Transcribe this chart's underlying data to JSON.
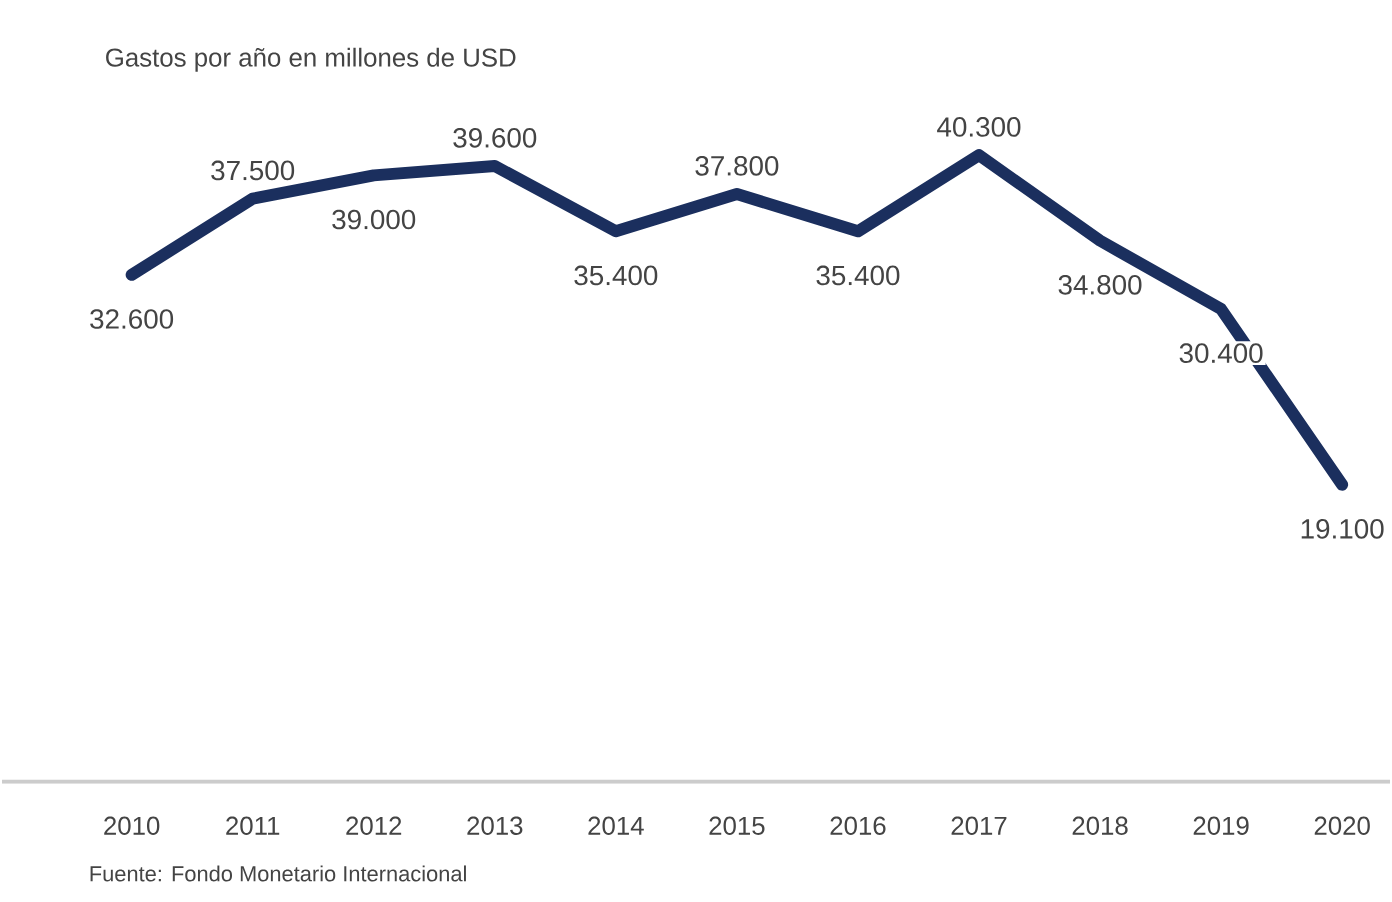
{
  "chart_data": {
    "type": "line",
    "title": "Gastos por año en millones de USD",
    "categories": [
      "2010",
      "2011",
      "2012",
      "2013",
      "2014",
      "2015",
      "2016",
      "2017",
      "2018",
      "2019",
      "2020"
    ],
    "series": [
      {
        "color": "#1b2f5e",
        "values": [
          32600,
          37500,
          39000,
          39600,
          35400,
          37800,
          35400,
          40300,
          34800,
          30400,
          19100
        ],
        "value_labels": [
          "32.600",
          "37.500",
          "39.000",
          "39.600",
          "35.400",
          "37.800",
          "35.400",
          "40.300",
          "34.800",
          "30.400",
          "19.100"
        ]
      }
    ],
    "annotations": [
      "Fuente: Fondo Monetario Internacional"
    ]
  }
}
